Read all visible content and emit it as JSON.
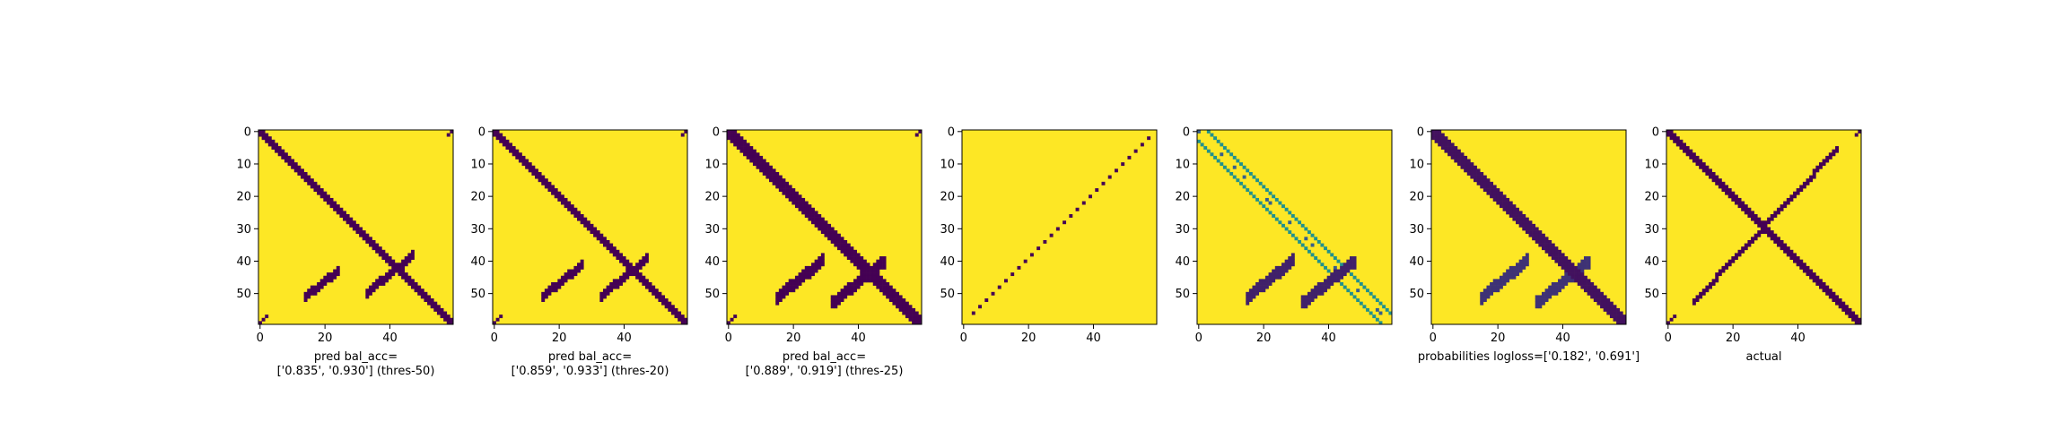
{
  "figure": {
    "colors": {
      "dark": "#440154",
      "mid_dark": "#3b528b",
      "mid": "#21918c",
      "mid_light": "#5ec962",
      "light": "#fde725",
      "axis": "#000000"
    }
  },
  "chart_data": [
    {
      "type": "heatmap",
      "title": "",
      "xlabel": "pred bal_acc=\n['0.835', '0.930'] (thres-50)",
      "ylabel": "",
      "xlim": [
        0,
        59
      ],
      "ylim": [
        59,
        0
      ],
      "x_ticks": [
        0,
        20,
        40
      ],
      "y_ticks": [
        0,
        10,
        20,
        30,
        40,
        50
      ],
      "matrix_size": 60,
      "kind": "binary",
      "features": [
        {
          "shape": "diagonal",
          "from": 0,
          "to": 59,
          "width": 3,
          "value": 0
        },
        {
          "shape": "antidiagonal_blob",
          "center": [
            47,
            19
          ],
          "length": 10,
          "width": 3,
          "value": 0
        },
        {
          "shape": "antidiagonal_blob",
          "center": [
            44,
            40
          ],
          "length": 14,
          "width": 3,
          "value": 0
        },
        {
          "shape": "edge_dots",
          "value": 0
        }
      ]
    },
    {
      "type": "heatmap",
      "title": "",
      "xlabel": "pred bal_acc=\n['0.859', '0.933'] (thres-20)",
      "ylabel": "",
      "xlim": [
        0,
        59
      ],
      "ylim": [
        59,
        0
      ],
      "x_ticks": [
        0,
        20,
        40
      ],
      "y_ticks": [
        0,
        10,
        20,
        30,
        40,
        50
      ],
      "matrix_size": 60,
      "kind": "binary",
      "features": [
        {
          "shape": "diagonal",
          "from": 0,
          "to": 59,
          "width": 3,
          "value": 0
        },
        {
          "shape": "antidiagonal_blob",
          "center": [
            46,
            21
          ],
          "length": 12,
          "width": 3,
          "value": 0
        },
        {
          "shape": "antidiagonal_blob",
          "center": [
            45,
            40
          ],
          "length": 14,
          "width": 3,
          "value": 0
        },
        {
          "shape": "edge_dots",
          "value": 0
        }
      ]
    },
    {
      "type": "heatmap",
      "title": "",
      "xlabel": "pred bal_acc=\n['0.889', '0.919'] (thres-25)",
      "ylabel": "",
      "xlim": [
        0,
        59
      ],
      "ylim": [
        59,
        0
      ],
      "x_ticks": [
        0,
        20,
        40
      ],
      "y_ticks": [
        0,
        10,
        20,
        30,
        40,
        50
      ],
      "matrix_size": 60,
      "kind": "binary",
      "features": [
        {
          "shape": "diagonal",
          "from": 0,
          "to": 59,
          "width": 4,
          "value": 0
        },
        {
          "shape": "antidiagonal_blob",
          "center": [
            45,
            22
          ],
          "length": 14,
          "width": 4,
          "value": 0
        },
        {
          "shape": "antidiagonal_blob",
          "center": [
            46,
            40
          ],
          "length": 16,
          "width": 4,
          "value": 0
        },
        {
          "shape": "edge_dots",
          "value": 0
        }
      ]
    },
    {
      "type": "heatmap",
      "title": "",
      "xlabel": "",
      "ylabel": "",
      "xlim": [
        0,
        59
      ],
      "ylim": [
        59,
        0
      ],
      "x_ticks": [
        0,
        20,
        40
      ],
      "y_ticks": [
        0,
        10,
        20,
        30,
        40,
        50
      ],
      "matrix_size": 60,
      "kind": "binary",
      "features": [
        {
          "shape": "antidiagonal_line",
          "from": [
            2,
            57
          ],
          "to": [
            57,
            2
          ],
          "width": 1,
          "value": 0,
          "sparse": true
        }
      ]
    },
    {
      "type": "heatmap",
      "title": "",
      "xlabel": "",
      "ylabel": "",
      "xlim": [
        0,
        59
      ],
      "ylim": [
        59,
        0
      ],
      "x_ticks": [
        0,
        20,
        40
      ],
      "y_ticks": [
        0,
        10,
        20,
        30,
        40,
        50
      ],
      "matrix_size": 60,
      "kind": "probability",
      "features": [
        {
          "shape": "diagonal_band",
          "offset": 3,
          "value": 0.5
        },
        {
          "shape": "antidiagonal_blob",
          "center": [
            45,
            22
          ],
          "length": 14,
          "width": 4,
          "value": 0.1
        },
        {
          "shape": "antidiagonal_blob",
          "center": [
            46,
            40
          ],
          "length": 16,
          "width": 4,
          "value": 0.1
        }
      ]
    },
    {
      "type": "heatmap",
      "title": "",
      "xlabel": "probabilities logloss=['0.182', '0.691']",
      "ylabel": "",
      "xlim": [
        0,
        59
      ],
      "ylim": [
        59,
        0
      ],
      "x_ticks": [
        0,
        20,
        40
      ],
      "y_ticks": [
        0,
        10,
        20,
        30,
        40,
        50
      ],
      "matrix_size": 60,
      "kind": "probability",
      "features": [
        {
          "shape": "diagonal",
          "from": 0,
          "to": 59,
          "width": 4,
          "value": 0.05
        },
        {
          "shape": "antidiagonal_blob",
          "center": [
            45,
            22
          ],
          "length": 14,
          "width": 4,
          "value": 0.15
        },
        {
          "shape": "antidiagonal_blob",
          "center": [
            46,
            40
          ],
          "length": 16,
          "width": 4,
          "value": 0.15
        }
      ]
    },
    {
      "type": "heatmap",
      "title": "",
      "xlabel": "actual",
      "ylabel": "",
      "xlim": [
        0,
        59
      ],
      "ylim": [
        59,
        0
      ],
      "x_ticks": [
        0,
        20,
        40
      ],
      "y_ticks": [
        0,
        10,
        20,
        30,
        40,
        50
      ],
      "matrix_size": 60,
      "kind": "binary",
      "features": [
        {
          "shape": "diagonal",
          "from": 0,
          "to": 59,
          "width": 3,
          "value": 0
        },
        {
          "shape": "antidiagonal_line",
          "from": [
            5,
            52
          ],
          "to": [
            52,
            8
          ],
          "width": 2,
          "value": 0
        },
        {
          "shape": "edge_dots",
          "value": 0
        }
      ]
    }
  ]
}
